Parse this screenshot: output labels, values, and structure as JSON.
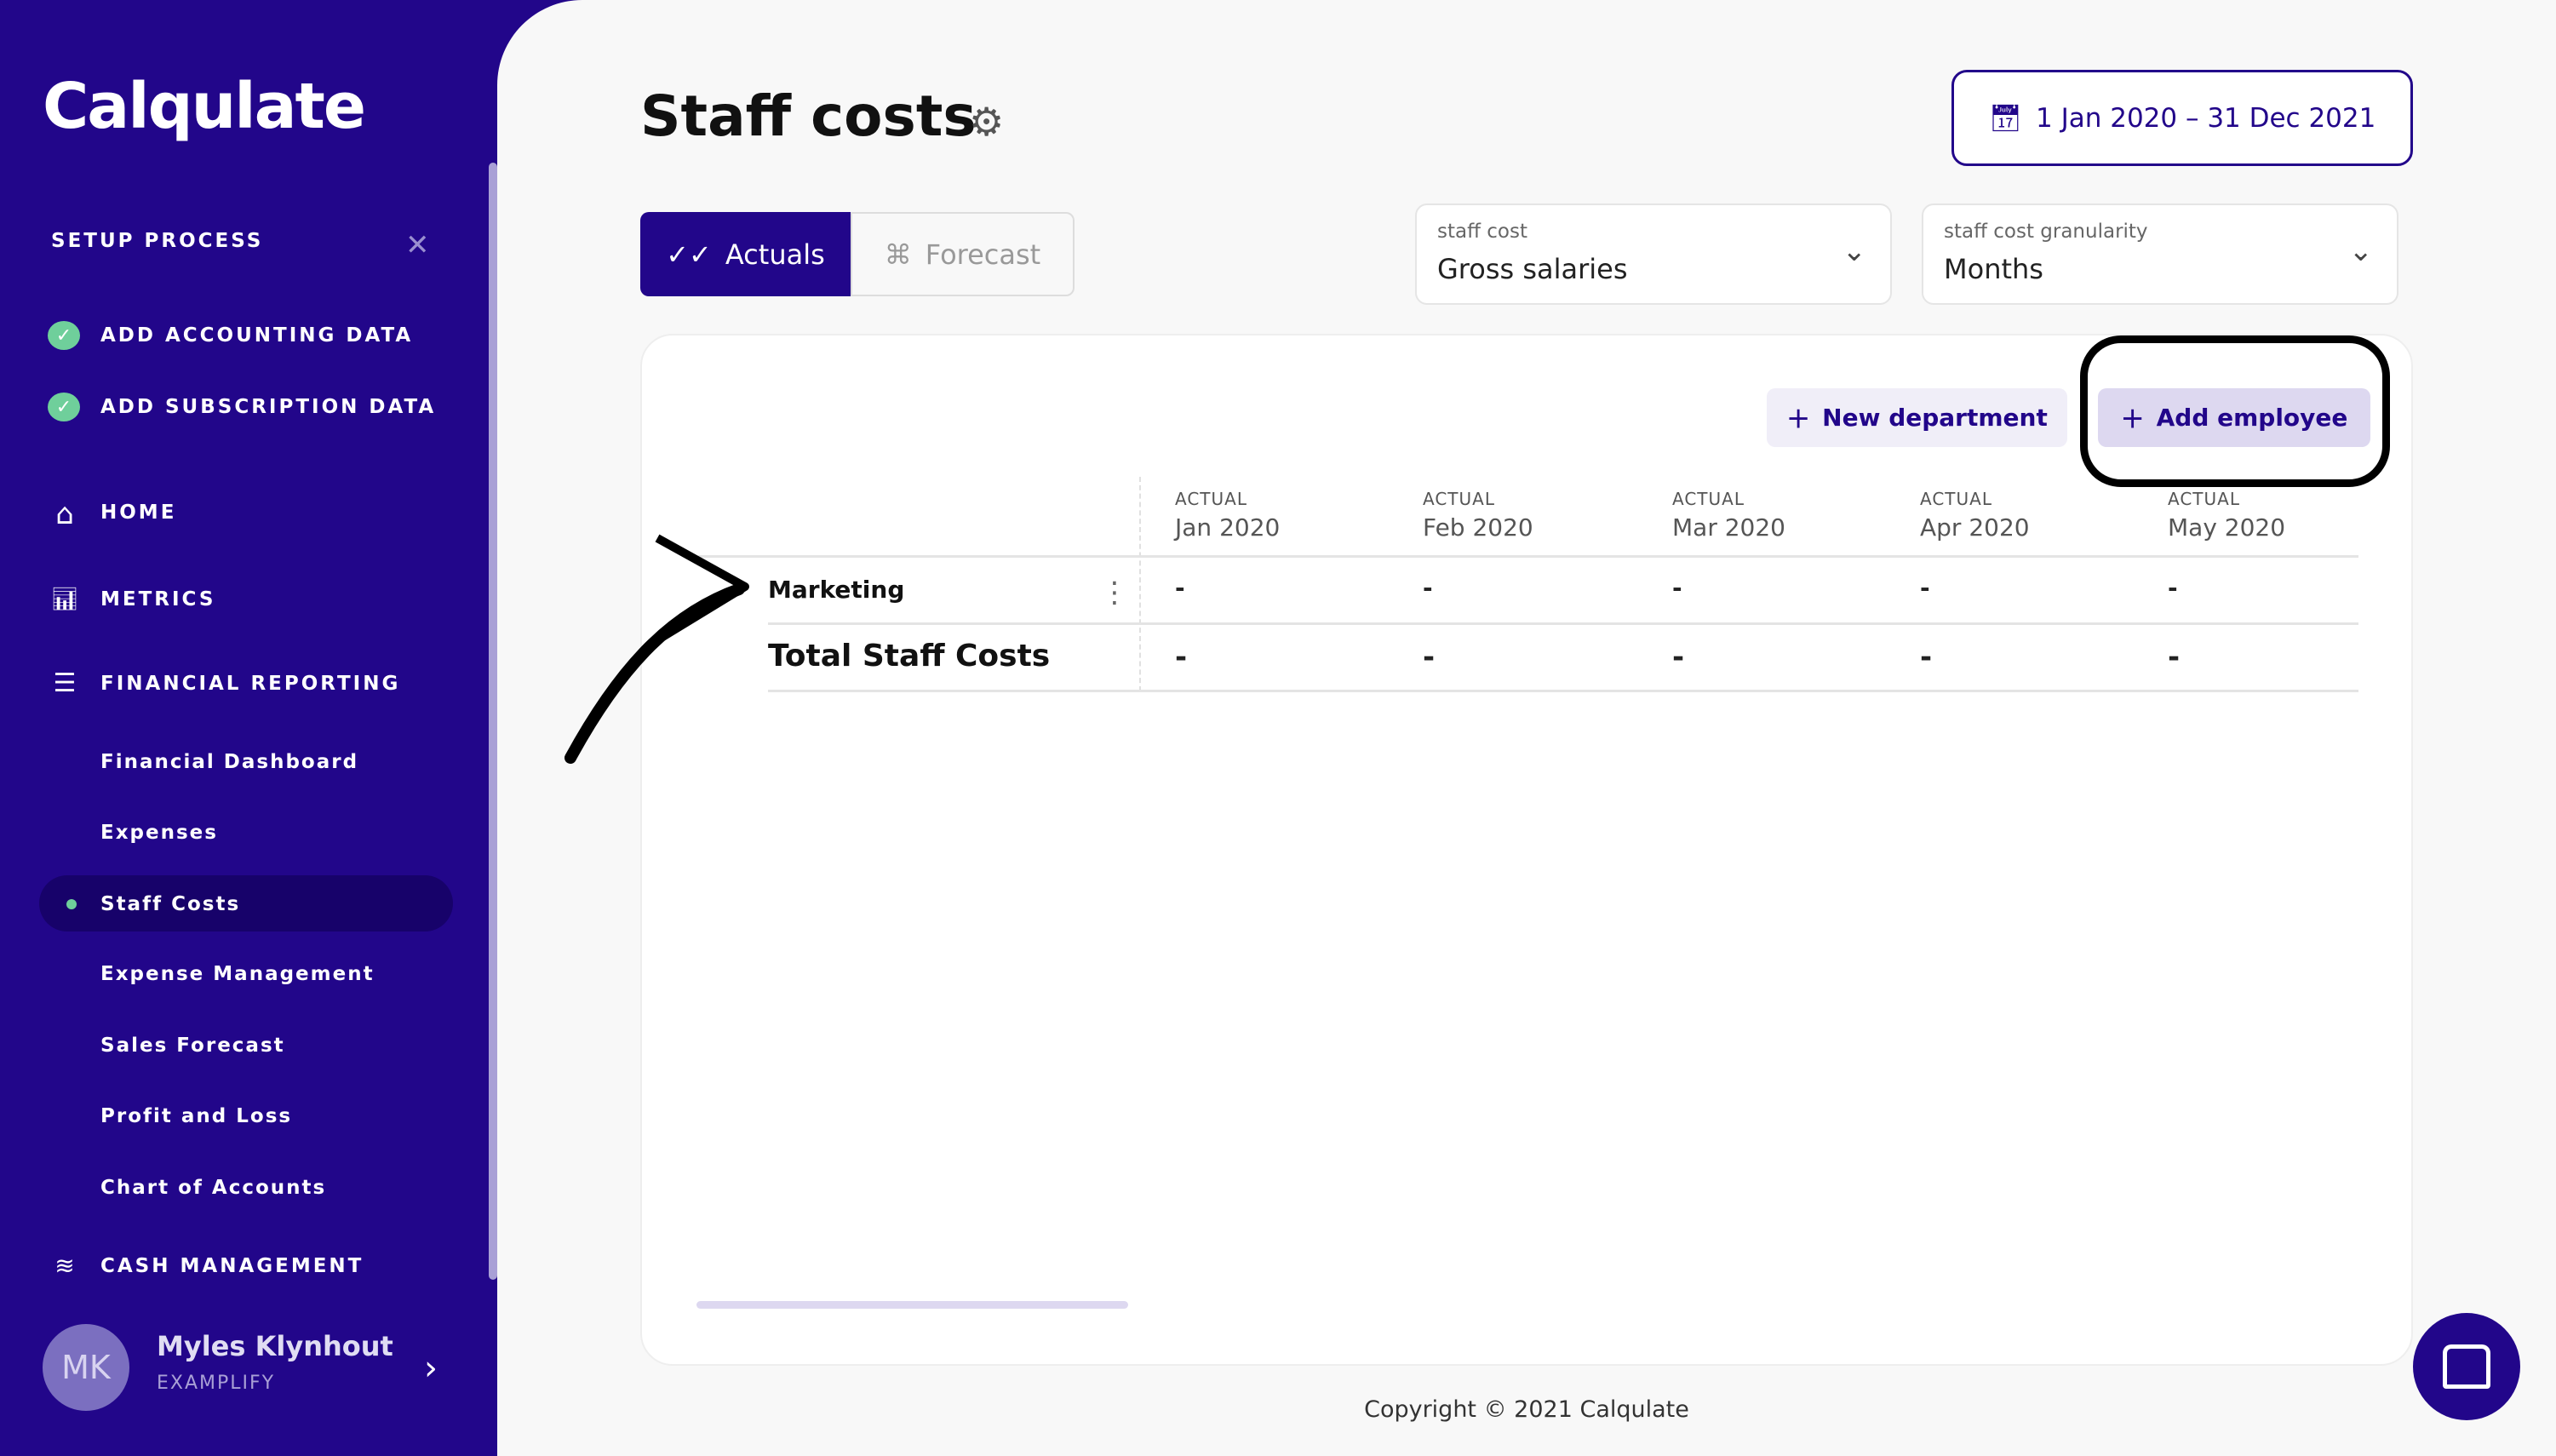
{
  "sidebar": {
    "logo": "Calqulate",
    "setup_title": "SETUP PROCESS",
    "setup_items": [
      {
        "label": "ADD ACCOUNTING DATA",
        "done": true
      },
      {
        "label": "ADD SUBSCRIPTION DATA",
        "done": true
      }
    ],
    "nav": {
      "home": "HOME",
      "metrics": "METRICS",
      "financial_reporting": "FINANCIAL REPORTING",
      "cash_management": "CASH MANAGEMENT"
    },
    "sub_items": [
      "Financial Dashboard",
      "Expenses",
      "Staff Costs",
      "Expense Management",
      "Sales Forecast",
      "Profit and Loss",
      "Chart of Accounts"
    ],
    "active_item": "Staff Costs",
    "user": {
      "initials": "MK",
      "name": "Myles Klynhout",
      "org": "EXAMPLIFY"
    }
  },
  "header": {
    "title": "Staff costs",
    "date_range": "1 Jan 2020 – 31 Dec 2021"
  },
  "toggle": {
    "actuals": "Actuals",
    "forecast": "Forecast",
    "selected": "Actuals"
  },
  "filters": [
    {
      "label": "staff cost",
      "value": "Gross salaries"
    },
    {
      "label": "staff cost granularity",
      "value": "Months"
    }
  ],
  "buttons": {
    "new_department": "New department",
    "add_employee": "Add employee"
  },
  "table": {
    "columns": [
      {
        "type": "ACTUAL",
        "month": "Jan 2020"
      },
      {
        "type": "ACTUAL",
        "month": "Feb 2020"
      },
      {
        "type": "ACTUAL",
        "month": "Mar 2020"
      },
      {
        "type": "ACTUAL",
        "month": "Apr 2020"
      },
      {
        "type": "ACTUAL",
        "month": "May 2020"
      }
    ],
    "rows": [
      {
        "label": "Marketing",
        "values": [
          "-",
          "-",
          "-",
          "-",
          "-"
        ]
      },
      {
        "label": "Total Staff Costs",
        "values": [
          "-",
          "-",
          "-",
          "-",
          "-"
        ]
      }
    ]
  },
  "footer": {
    "copyright": "Copyright © 2021 Calqulate"
  },
  "colors": {
    "brand": "#22068a",
    "success": "#6fcf9b",
    "button_bg": "#ddd8f0"
  }
}
